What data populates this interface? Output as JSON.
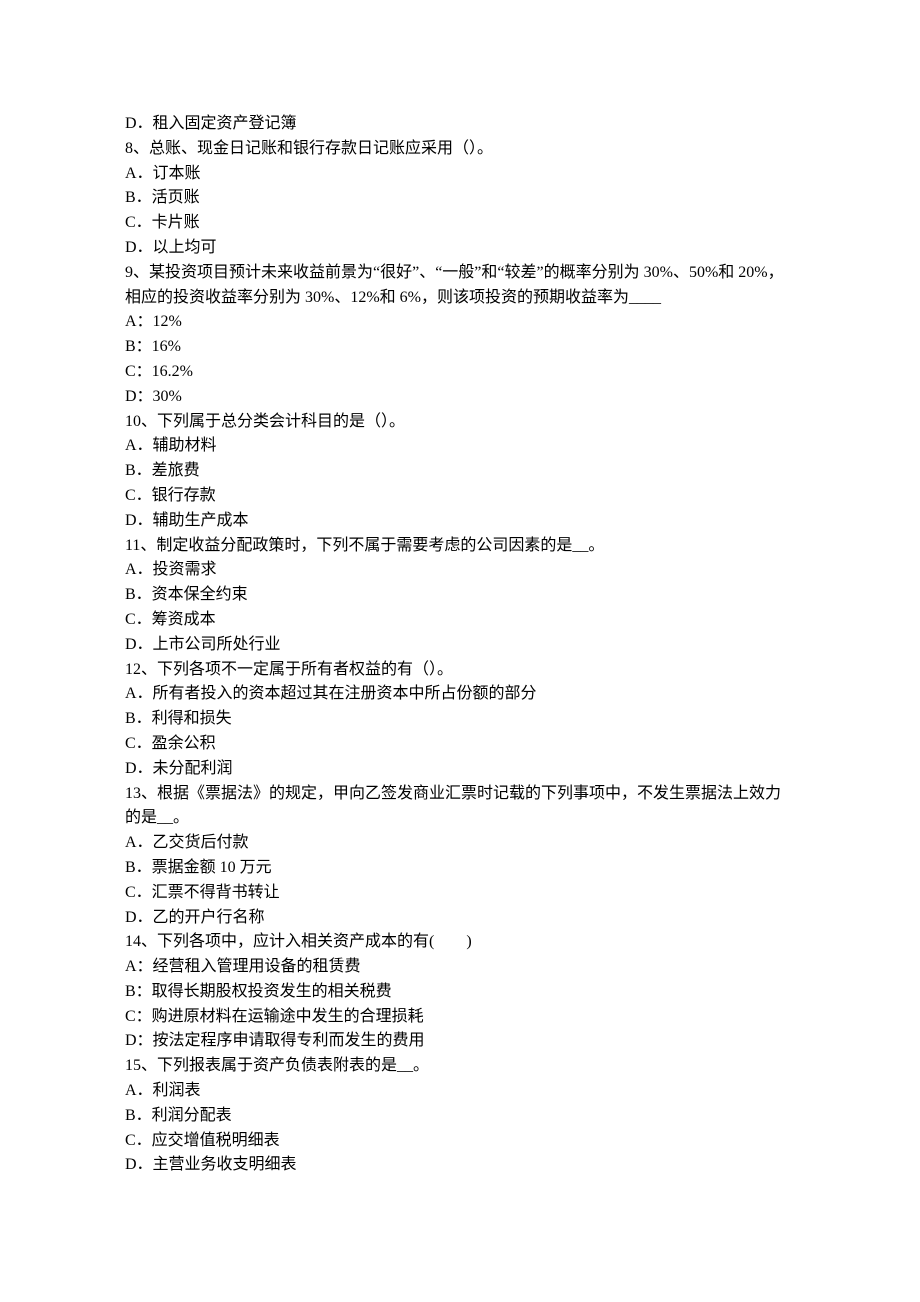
{
  "document": {
    "font_family": "SimSun",
    "font_size": 16,
    "text_color": "#000000",
    "background_color": "#ffffff",
    "line_height": 1.55
  },
  "lines": [
    "D．租入固定资产登记簿",
    "8、总账、现金日记账和银行存款日记账应采用（）。",
    "A．订本账",
    "B．活页账",
    "C．卡片账",
    "D．以上均可",
    "9、某投资项目预计未来收益前景为“很好”、“一般”和“较差”的概率分别为 30%、50%和 20%，相应的投资收益率分别为 30%、12%和 6%，则该项投资的预期收益率为____",
    "A：12%",
    "B：16%",
    "C：16.2%",
    "D：30%",
    "10、下列属于总分类会计科目的是（）。",
    "A．辅助材料",
    "B．差旅费",
    "C．银行存款",
    "D．辅助生产成本",
    "11、制定收益分配政策时，下列不属于需要考虑的公司因素的是__。",
    "A．投资需求",
    "B．资本保全约束",
    "C．筹资成本",
    "D．上市公司所处行业",
    "12、下列各项不一定属于所有者权益的有（）。",
    "A．所有者投入的资本超过其在注册资本中所占份额的部分",
    "B．利得和损失",
    "C．盈余公积",
    "D．未分配利润",
    "13、根据《票据法》的规定，甲向乙签发商业汇票时记载的下列事项中，不发生票据法上效力的是__。",
    "A．乙交货后付款",
    "B．票据金额 10 万元",
    "C．汇票不得背书转让",
    "D．乙的开户行名称",
    "14、下列各项中，应计入相关资产成本的有(　　)",
    "A：经营租入管理用设备的租赁费",
    "B：取得长期股权投资发生的相关税费",
    "C：购进原材料在运输途中发生的合理损耗",
    "D：按法定程序申请取得专利而发生的费用",
    "15、下列报表属于资产负债表附表的是__。",
    "A．利润表",
    "B．利润分配表",
    "C．应交增值税明细表",
    "D．主营业务收支明细表"
  ]
}
